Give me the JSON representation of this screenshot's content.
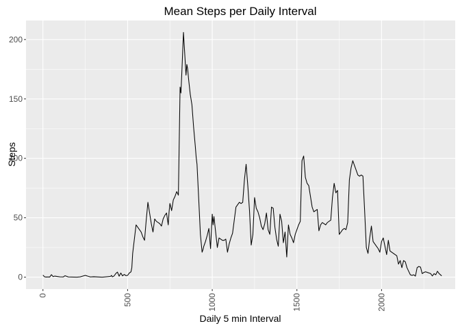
{
  "chart_data": {
    "type": "line",
    "title": "Mean Steps per Daily Interval",
    "xlabel": "Daily 5 min Interval",
    "ylabel": "Steps",
    "xlim": [
      -100,
      2435
    ],
    "ylim": [
      -10,
      216
    ],
    "x_ticks": [
      0,
      500,
      1000,
      1500,
      2000
    ],
    "y_ticks": [
      0,
      50,
      100,
      150,
      200
    ],
    "x_tick_labels": [
      "0",
      "500",
      "1000",
      "1500",
      "2000"
    ],
    "y_tick_labels": [
      "0",
      "50",
      "100",
      "150",
      "200"
    ],
    "x_tick_rotation": -90,
    "grid": true,
    "panel_background": "#EBEBEB",
    "grid_color": "#FFFFFF",
    "line_color": "#000000",
    "series": [
      {
        "x": [
          0,
          10,
          20,
          30,
          40,
          50,
          60,
          70,
          100,
          120,
          130,
          150,
          200,
          220,
          250,
          280,
          300,
          350,
          400,
          405,
          410,
          420,
          430,
          440,
          450,
          460,
          470,
          480,
          490,
          500,
          510,
          520,
          525,
          530,
          550,
          580,
          590,
          600,
          610,
          620,
          630,
          640,
          650,
          660,
          670,
          690,
          700,
          710,
          720,
          730,
          740,
          745,
          750,
          760,
          770,
          780,
          790,
          800,
          810,
          815,
          820,
          830,
          840,
          845,
          850,
          855,
          860,
          870,
          880,
          890,
          900,
          905,
          910,
          920,
          930,
          940,
          945,
          950,
          960,
          970,
          980,
          990,
          1000,
          1005,
          1010,
          1020,
          1030,
          1040,
          1050,
          1060,
          1070,
          1080,
          1090,
          1100,
          1110,
          1120,
          1130,
          1140,
          1150,
          1160,
          1170,
          1180,
          1190,
          1200,
          1210,
          1220,
          1230,
          1240,
          1250,
          1260,
          1270,
          1280,
          1290,
          1300,
          1310,
          1320,
          1330,
          1340,
          1350,
          1360,
          1370,
          1380,
          1390,
          1400,
          1410,
          1420,
          1430,
          1440,
          1450,
          1460,
          1470,
          1480,
          1490,
          1500,
          1510,
          1520,
          1530,
          1540,
          1550,
          1560,
          1570,
          1580,
          1590,
          1600,
          1610,
          1620,
          1630,
          1640,
          1650,
          1660,
          1670,
          1680,
          1690,
          1700,
          1710,
          1720,
          1730,
          1740,
          1750,
          1760,
          1770,
          1780,
          1790,
          1800,
          1810,
          1820,
          1830,
          1840,
          1850,
          1860,
          1870,
          1880,
          1890,
          1900,
          1910,
          1920,
          1930,
          1940,
          1950,
          1960,
          1970,
          1980,
          1990,
          2000,
          2010,
          2020,
          2030,
          2040,
          2050,
          2060,
          2070,
          2080,
          2090,
          2100,
          2110,
          2120,
          2130,
          2140,
          2150,
          2160,
          2170,
          2180,
          2190,
          2200,
          2210,
          2220,
          2230,
          2240,
          2250,
          2260,
          2270,
          2280,
          2290,
          2300,
          2310,
          2320,
          2330,
          2340,
          2355
        ],
        "y": [
          1.7,
          0.3,
          0.1,
          0.2,
          0.1,
          2.1,
          0.5,
          0.9,
          0.3,
          0.2,
          1.2,
          0.2,
          0.0,
          0.3,
          1.5,
          0.2,
          0.4,
          0.0,
          0.7,
          1.5,
          0.3,
          1.0,
          3.0,
          4.3,
          0.8,
          3.5,
          1.1,
          2.3,
          1.3,
          1.5,
          3.5,
          4.5,
          8.0,
          20.0,
          44.0,
          38.0,
          34.0,
          31.0,
          48.0,
          63.0,
          54.0,
          45.0,
          38.0,
          49.0,
          47.0,
          45.0,
          43.0,
          49.0,
          52.0,
          54.0,
          44.0,
          55.0,
          62.0,
          56.0,
          65.0,
          68.0,
          72.0,
          69.0,
          160.0,
          155.0,
          171.0,
          206.0,
          182.0,
          170.0,
          179.0,
          175.0,
          167.0,
          154.0,
          145.0,
          126.0,
          110.0,
          101.0,
          95.0,
          66.0,
          36.0,
          21.0,
          23.0,
          26.0,
          30.0,
          35.0,
          41.0,
          24.0,
          53.0,
          44.0,
          51.0,
          38.0,
          25.0,
          33.0,
          32.0,
          31.0,
          31.0,
          32.0,
          21.0,
          28.0,
          33.0,
          37.0,
          48.0,
          59.0,
          61.0,
          63.0,
          62.0,
          63.0,
          82.0,
          95.0,
          77.0,
          56.0,
          27.0,
          36.0,
          67.0,
          58.0,
          55.0,
          50.0,
          43.0,
          40.0,
          45.0,
          54.0,
          40.0,
          36.0,
          59.0,
          58.0,
          42.0,
          32.0,
          26.0,
          53.0,
          47.0,
          29.0,
          38.0,
          17.0,
          44.0,
          36.0,
          33.0,
          29.0,
          36.0,
          40.0,
          44.0,
          47.0,
          98.0,
          102.0,
          84.0,
          79.0,
          77.0,
          68.0,
          59.0,
          55.0,
          56.0,
          57.0,
          39.0,
          44.0,
          46.0,
          45.0,
          44.0,
          46.0,
          47.0,
          48.0,
          67.0,
          79.0,
          71.0,
          73.0,
          36.0,
          38.0,
          40.0,
          41.0,
          40.0,
          46.0,
          82.0,
          92.0,
          98.0,
          94.0,
          90.0,
          86.0,
          85.0,
          86.0,
          85.0,
          56.0,
          25.0,
          20.0,
          33.0,
          43.0,
          30.0,
          28.0,
          26.0,
          24.0,
          21.0,
          30.0,
          33.0,
          26.0,
          19.0,
          31.0,
          22.0,
          21.0,
          20.0,
          19.0,
          18.0,
          11.0,
          14.0,
          8.0,
          14.0,
          13.0,
          8.0,
          5.0,
          2.0,
          1.5,
          2.0,
          0.9,
          8.0,
          9.0,
          8.5,
          3.0,
          4.0,
          4.5,
          4.0,
          3.5,
          3.0,
          1.0,
          3.0,
          2.0,
          5.0,
          3.0,
          1.1
        ]
      }
    ]
  }
}
